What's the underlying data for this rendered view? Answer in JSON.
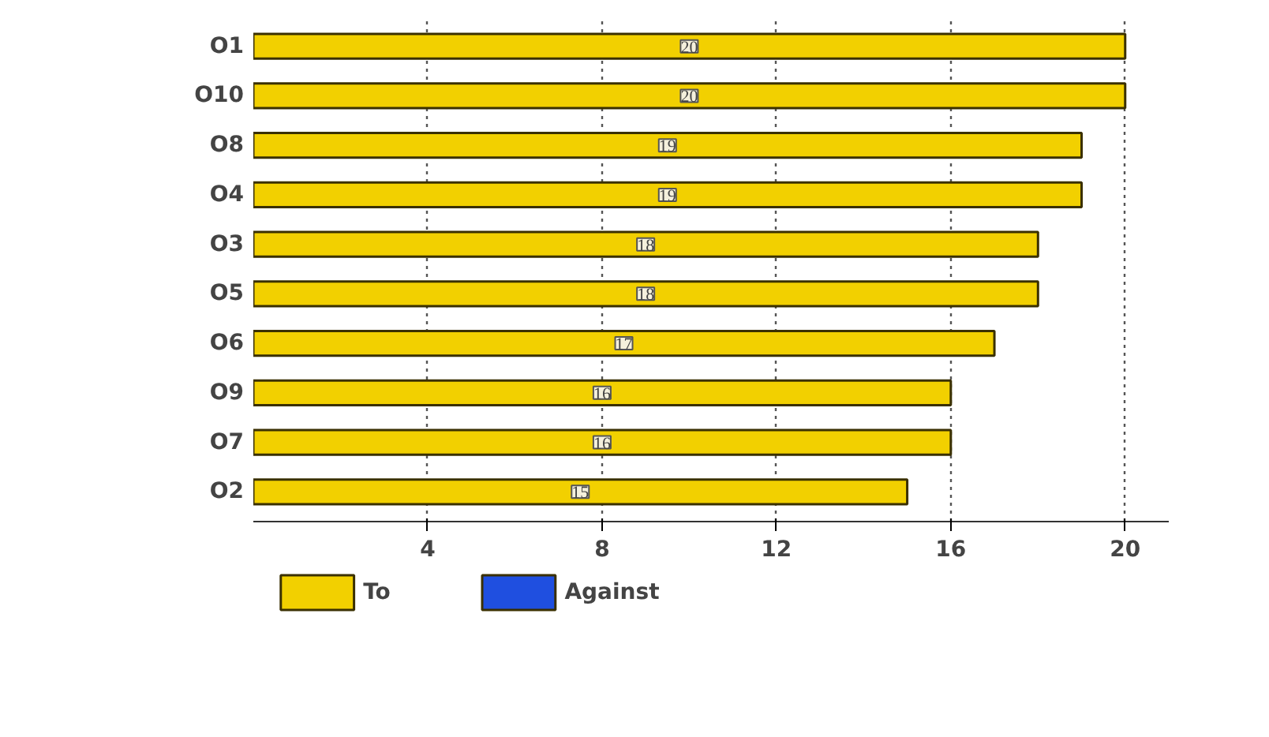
{
  "chart_data": {
    "type": "bar",
    "orientation": "horizontal",
    "stacked": true,
    "categories": [
      "O1",
      "O10",
      "O8",
      "O4",
      "O3",
      "O5",
      "O6",
      "O9",
      "O7",
      "O2"
    ],
    "series": [
      {
        "name": "To",
        "color": "#f2d000",
        "values": [
          20,
          20,
          19,
          19,
          18,
          18,
          17,
          16,
          16,
          15
        ],
        "value_labels": [
          "20",
          "20",
          "19",
          "19",
          "18",
          "18",
          "17",
          "16",
          "16",
          "15"
        ]
      },
      {
        "name": "Against",
        "color": "#1f4fe0",
        "values": [
          0,
          0,
          0,
          0,
          0,
          0,
          0,
          0,
          0,
          0
        ]
      }
    ],
    "xlim": [
      0,
      21
    ],
    "xticks": [
      4,
      8,
      12,
      16,
      20
    ],
    "grid": "x",
    "legend": "bottom"
  }
}
